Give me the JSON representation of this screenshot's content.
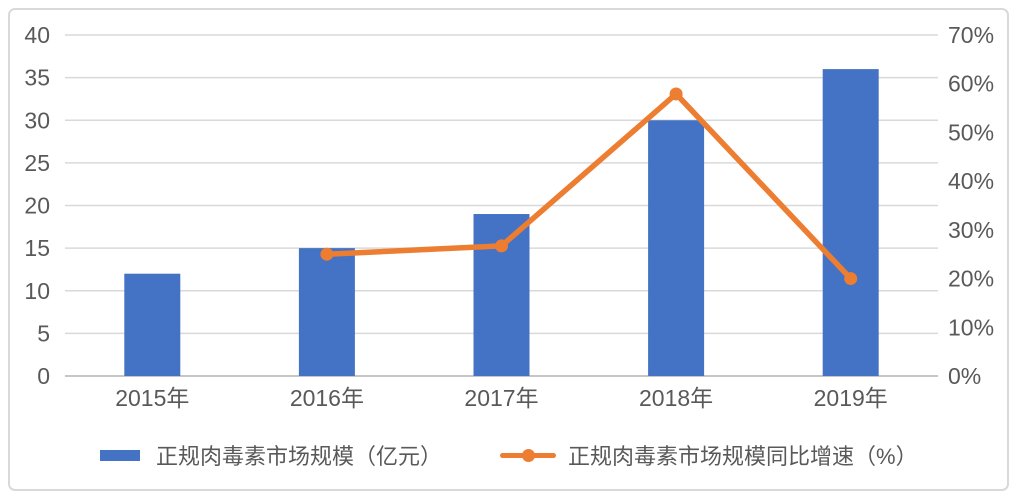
{
  "chart_data": {
    "type": "combo-bar-line",
    "categories": [
      "2015年",
      "2016年",
      "2017年",
      "2018年",
      "2019年"
    ],
    "series": [
      {
        "name": "正规肉毒素市场规模（亿元）",
        "type": "bar",
        "axis": "left",
        "color": "#4472C4",
        "values": [
          12,
          15,
          19,
          30,
          36
        ]
      },
      {
        "name": "正规肉毒素市场规模同比增速（%）",
        "type": "line",
        "axis": "right",
        "color": "#ED7D31",
        "values": [
          null,
          25,
          26.7,
          57.9,
          20
        ]
      }
    ],
    "left_axis": {
      "min": 0,
      "max": 40,
      "step": 5,
      "tick_labels": [
        "0",
        "5",
        "10",
        "15",
        "20",
        "25",
        "30",
        "35",
        "40"
      ]
    },
    "right_axis": {
      "min": 0,
      "max": 70,
      "step": 10,
      "tick_labels": [
        "0%",
        "10%",
        "20%",
        "30%",
        "40%",
        "50%",
        "60%",
        "70%"
      ]
    },
    "grid": true,
    "legend_position": "bottom",
    "title": "",
    "xlabel": "",
    "ylabel": ""
  },
  "colors": {
    "bar": "#4472C4",
    "line": "#ED7D31",
    "gridline": "#D9D9D9",
    "axis_line": "#C6C6C6",
    "tick_text": "#595959",
    "border": "#D9D9D9"
  }
}
